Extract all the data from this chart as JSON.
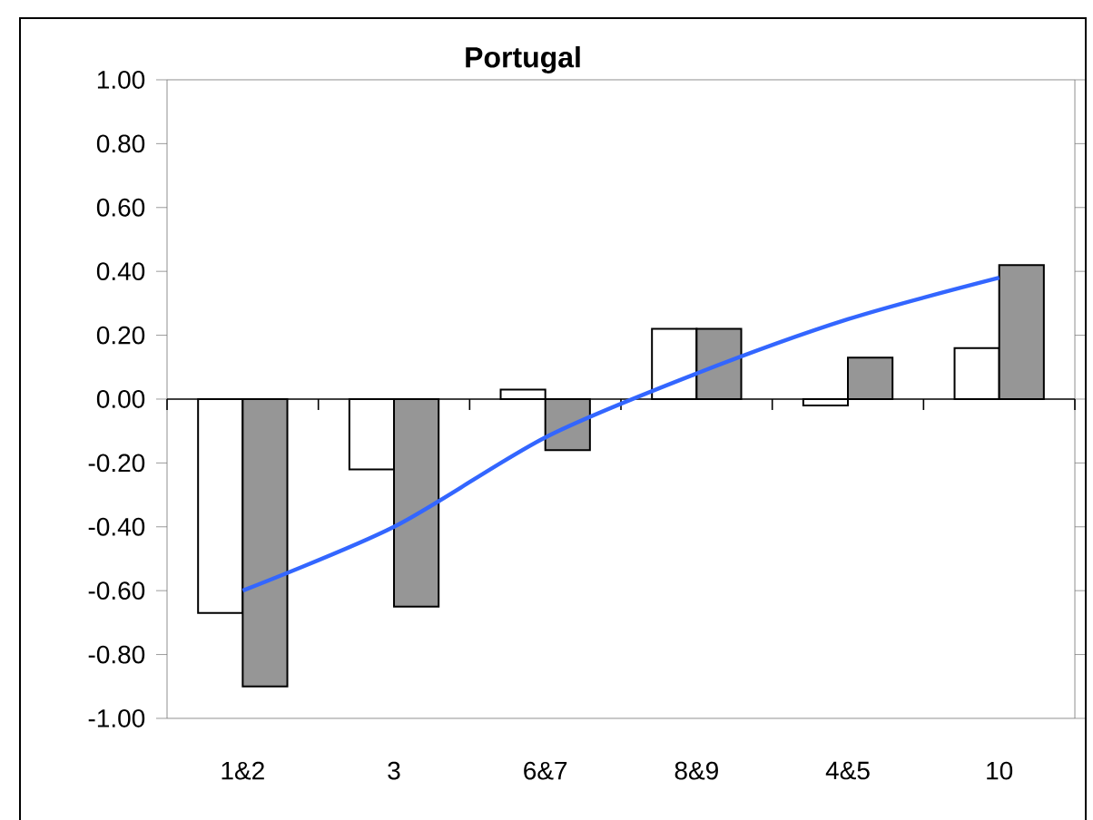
{
  "chart_data": {
    "type": "bar",
    "title": "Portugal",
    "categories": [
      "1&2",
      "3",
      "6&7",
      "8&9",
      "4&5",
      "10"
    ],
    "series": [
      {
        "color": "#ffffff",
        "values": [
          -0.67,
          -0.22,
          0.03,
          0.22,
          -0.02,
          0.16
        ]
      },
      {
        "color": "#969696",
        "values": [
          -0.9,
          -0.65,
          -0.16,
          0.22,
          0.13,
          0.42
        ]
      },
      {
        "type": "line",
        "color": "#3366ff",
        "values": [
          -0.6,
          -0.4,
          -0.12,
          0.08,
          0.25,
          0.38
        ]
      }
    ],
    "ylim": [
      -1,
      1
    ],
    "yticks": [
      {
        "value": -1,
        "label": "-1.00"
      },
      {
        "value": -0.8,
        "label": "-0.80"
      },
      {
        "value": -0.6,
        "label": "-0.60"
      },
      {
        "value": -0.4,
        "label": "-0.40"
      },
      {
        "value": -0.2,
        "label": "-0.20"
      },
      {
        "value": 0,
        "label": "0.00"
      },
      {
        "value": 0.2,
        "label": "0.20"
      },
      {
        "value": 0.4,
        "label": "0.40"
      },
      {
        "value": 0.6,
        "label": "0.60"
      },
      {
        "value": 0.8,
        "label": "0.80"
      },
      {
        "value": 1,
        "label": "1.00"
      }
    ],
    "marker": "none"
  }
}
